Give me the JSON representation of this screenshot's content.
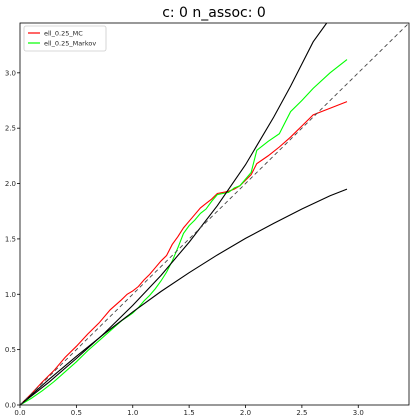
{
  "chart_data": {
    "type": "line",
    "title": "c: 0     n_assoc: 0",
    "xlabel": "",
    "ylabel": "",
    "xlim": [
      0,
      3.45
    ],
    "ylim": [
      0,
      3.45
    ],
    "xticks": [
      "0.0",
      "0.5",
      "1.0",
      "1.5",
      "2.0",
      "2.5",
      "3.0"
    ],
    "yticks": [
      "0.0",
      "0.5",
      "1.0",
      "1.5",
      "2.0",
      "2.5",
      "3.0"
    ],
    "xtick_values": [
      0,
      0.5,
      1.0,
      1.5,
      2.0,
      2.5,
      3.0
    ],
    "ytick_values": [
      0,
      0.5,
      1.0,
      1.5,
      2.0,
      2.5,
      3.0
    ],
    "grid": false,
    "legend_position": "top-left",
    "series": [
      {
        "name": "ell_0.25_MC",
        "color": "#ff0000",
        "x": [
          0,
          0.1,
          0.2,
          0.3,
          0.4,
          0.5,
          0.6,
          0.7,
          0.8,
          0.9,
          0.95,
          1.0,
          1.05,
          1.1,
          1.15,
          1.2,
          1.25,
          1.3,
          1.35,
          1.4,
          1.45,
          1.5,
          1.55,
          1.6,
          1.65,
          1.7,
          1.75,
          1.8,
          1.85,
          1.9,
          1.95,
          2.0,
          2.05,
          2.1,
          2.2,
          2.3,
          2.4,
          2.5,
          2.6,
          2.75,
          2.9
        ],
        "y": [
          0,
          0.1,
          0.21,
          0.31,
          0.43,
          0.53,
          0.64,
          0.74,
          0.86,
          0.95,
          1.0,
          1.03,
          1.07,
          1.13,
          1.18,
          1.24,
          1.3,
          1.35,
          1.45,
          1.52,
          1.6,
          1.66,
          1.72,
          1.78,
          1.82,
          1.86,
          1.91,
          1.92,
          1.93,
          1.95,
          1.98,
          2.03,
          2.08,
          2.18,
          2.25,
          2.33,
          2.42,
          2.52,
          2.62,
          2.68,
          2.74
        ]
      },
      {
        "name": "ell_0.25_Markov",
        "color": "#00ff00",
        "x": [
          0,
          0.1,
          0.2,
          0.3,
          0.4,
          0.5,
          0.6,
          0.7,
          0.8,
          0.9,
          1.0,
          1.05,
          1.1,
          1.15,
          1.2,
          1.25,
          1.3,
          1.35,
          1.4,
          1.45,
          1.5,
          1.55,
          1.6,
          1.65,
          1.7,
          1.75,
          1.8,
          1.85,
          1.9,
          1.95,
          2.0,
          2.05,
          2.1,
          2.2,
          2.3,
          2.4,
          2.5,
          2.6,
          2.75,
          2.9
        ],
        "y": [
          0,
          0.06,
          0.13,
          0.21,
          0.3,
          0.39,
          0.49,
          0.58,
          0.67,
          0.76,
          0.83,
          0.88,
          0.94,
          0.99,
          1.05,
          1.12,
          1.2,
          1.3,
          1.42,
          1.55,
          1.62,
          1.67,
          1.73,
          1.77,
          1.84,
          1.9,
          1.91,
          1.92,
          1.96,
          1.98,
          2.04,
          2.1,
          2.3,
          2.38,
          2.45,
          2.65,
          2.75,
          2.86,
          3.0,
          3.12
        ]
      },
      {
        "name": "",
        "color": "#000000",
        "x": [
          0,
          0.25,
          0.5,
          0.75,
          1.0,
          1.25,
          1.5,
          1.75,
          2.0,
          2.25,
          2.5,
          2.75,
          2.9
        ],
        "y": [
          0,
          0.225,
          0.44,
          0.645,
          0.84,
          1.025,
          1.195,
          1.355,
          1.505,
          1.64,
          1.77,
          1.89,
          1.95
        ]
      },
      {
        "name": "",
        "color": "#000000",
        "x": [
          0,
          0.25,
          0.5,
          0.75,
          1.0,
          1.25,
          1.5,
          1.75,
          2.0,
          2.25,
          2.4,
          2.5,
          2.6,
          2.72
        ],
        "y": [
          0,
          0.2,
          0.42,
          0.65,
          0.9,
          1.17,
          1.47,
          1.8,
          2.17,
          2.6,
          2.88,
          3.08,
          3.28,
          3.45
        ]
      },
      {
        "name": "",
        "color": "#444444",
        "dashed": true,
        "x": [
          0,
          3.45
        ],
        "y": [
          0,
          3.45
        ]
      }
    ]
  }
}
